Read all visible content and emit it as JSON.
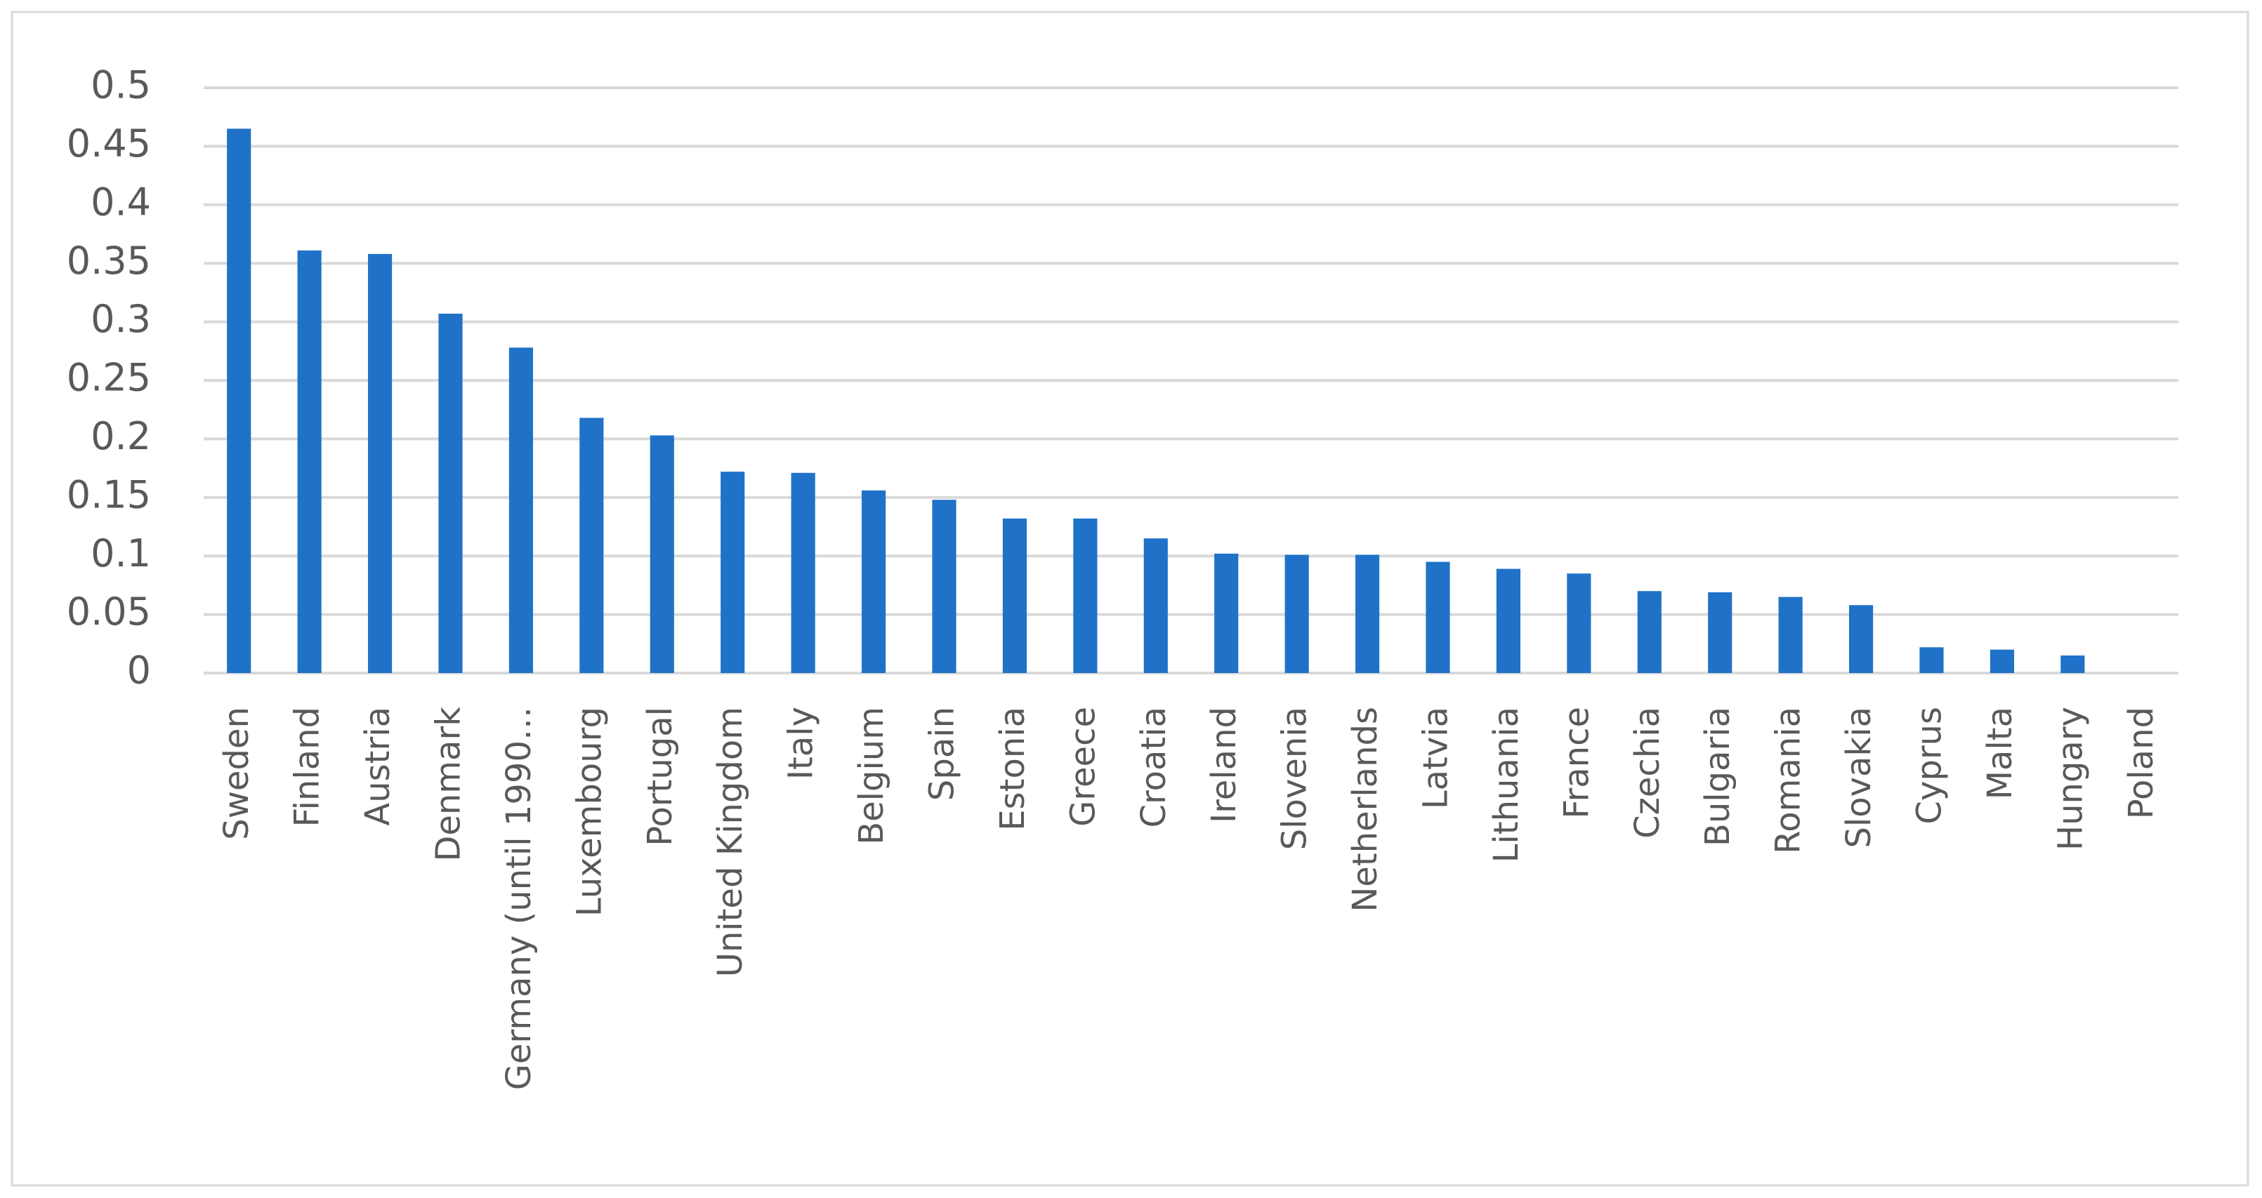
{
  "chart_data": {
    "type": "bar",
    "categories": [
      "Sweden",
      "Finland",
      "Austria",
      "Denmark",
      "Germany (until 1990…",
      "Luxembourg",
      "Portugal",
      "United Kingdom",
      "Italy",
      "Belgium",
      "Spain",
      "Estonia",
      "Greece",
      "Croatia",
      "Ireland",
      "Slovenia",
      "Netherlands",
      "Latvia",
      "Lithuania",
      "France",
      "Czechia",
      "Bulgaria",
      "Romania",
      "Slovakia",
      "Cyprus",
      "Malta",
      "Hungary",
      "Poland"
    ],
    "values": [
      0.465,
      0.361,
      0.358,
      0.307,
      0.278,
      0.218,
      0.203,
      0.172,
      0.171,
      0.156,
      0.148,
      0.132,
      0.132,
      0.115,
      0.102,
      0.101,
      0.101,
      0.095,
      0.089,
      0.085,
      0.07,
      0.069,
      0.065,
      0.058,
      0.022,
      0.02,
      0.015,
      0
    ],
    "color": "#1f72c8",
    "ylim": [
      0,
      0.5
    ],
    "yticks": [
      0,
      0.05,
      0.1,
      0.15,
      0.2,
      0.25,
      0.3,
      0.35,
      0.4,
      0.45,
      0.5
    ],
    "grid": true
  }
}
